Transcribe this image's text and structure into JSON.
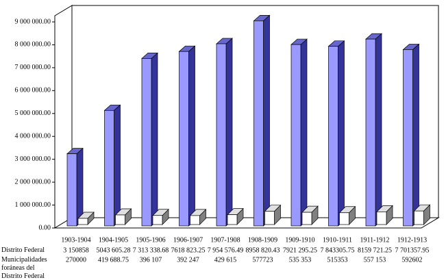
{
  "chart_data": {
    "type": "bar3d",
    "categories": [
      "1903-1904",
      "1904-1905",
      "1905-1906",
      "1906-1907",
      "1907-1908",
      "1908-1909",
      "1909-1910",
      "1910-1911",
      "1911-1912",
      "1912-1913"
    ],
    "series": [
      {
        "name": "Distrito Federal",
        "color": "#9999ff",
        "values": [
          3150858,
          5043605.28,
          7313338.68,
          7618823.25,
          7954576.49,
          8958820.43,
          7921295.25,
          7843305.75,
          8159721.25,
          7701357.95
        ],
        "value_labels": [
          "3 150858",
          "5043 605.28",
          "7 313 338.68",
          "7618 823.25",
          "7 954 576.49",
          "8958 820.43",
          "7921 295.25",
          "7 843305.75",
          "8159 721.25",
          "7 701357.95"
        ]
      },
      {
        "name": "Municipalidades foráneas del Distrito Federal",
        "color": "#ffffff",
        "values": [
          270000,
          419688.75,
          396107,
          392247,
          429615,
          577723,
          535353,
          515353,
          557153,
          592602
        ],
        "value_labels": [
          "270000",
          "419 688.75",
          "396 107",
          "392 247",
          "429 615",
          "577723",
          "535 353",
          "515353",
          "557 153",
          "592602"
        ]
      }
    ],
    "ylim": [
      0,
      9000000
    ],
    "yticks": [
      {
        "value": 0,
        "label": "0.00"
      },
      {
        "value": 1000000,
        "label": "1 000 000.00"
      },
      {
        "value": 2000000,
        "label": "2 000 000.00"
      },
      {
        "value": 3000000,
        "label": "3 000 000.00"
      },
      {
        "value": 4000000,
        "label": "4 000 000.00"
      },
      {
        "value": 5000000,
        "label": "5 000 000.00"
      },
      {
        "value": 6000000,
        "label": "6 000 000.00"
      },
      {
        "value": 7000000,
        "label": "7 000 000.00"
      },
      {
        "value": 8000000,
        "label": "8 000 000.00"
      },
      {
        "value": 9000000,
        "label": "9 000 000.00"
      }
    ]
  }
}
